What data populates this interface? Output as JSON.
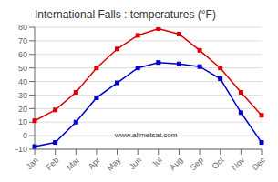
{
  "chart_data": {
    "type": "line",
    "title": "International Falls : temperatures (°F)",
    "categories": [
      "Jan",
      "Feb",
      "Mar",
      "Apr",
      "May",
      "Jun",
      "Jul",
      "Aug",
      "Sep",
      "Oct",
      "Nov",
      "Dec"
    ],
    "series": [
      {
        "color": "#dd0000",
        "values": [
          11,
          19,
          32,
          50,
          64,
          74,
          79,
          75,
          63,
          50,
          32,
          15
        ],
        "marker": "square",
        "line_style": "solid"
      },
      {
        "color": "#0000cc",
        "values": [
          -8,
          -5,
          10,
          28,
          39,
          50,
          54,
          53,
          51,
          42,
          17,
          -5
        ],
        "marker": "square",
        "line_style": "solid"
      }
    ],
    "ylim": [
      -10,
      80
    ],
    "yticks": [
      -10,
      0,
      10,
      20,
      30,
      40,
      50,
      60,
      70,
      80
    ],
    "grid": "y",
    "annotations": [
      "www.allmetsat.com"
    ]
  }
}
